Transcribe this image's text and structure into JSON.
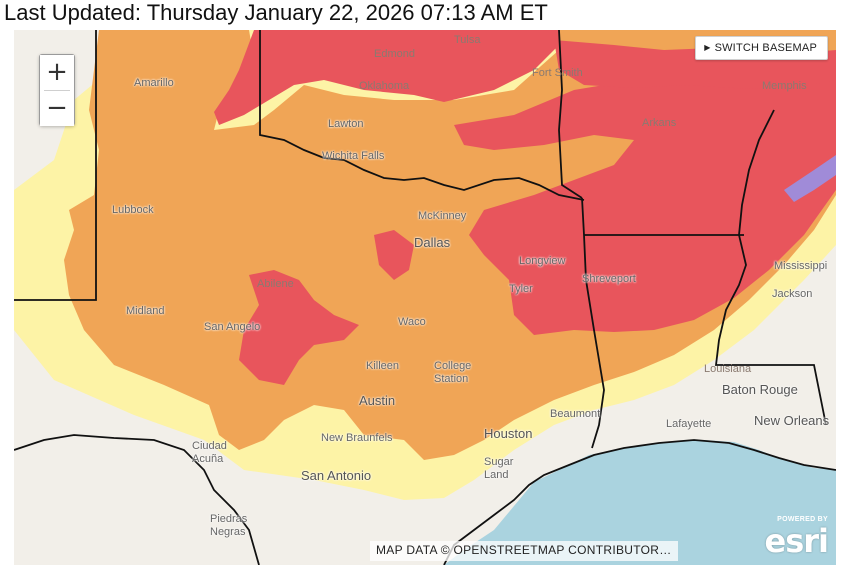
{
  "header": {
    "last_updated": "Last Updated: Thursday January 22, 2026 07:13 AM ET"
  },
  "controls": {
    "zoom_in": "+",
    "zoom_out": "−",
    "switch_basemap_arrow": "▶",
    "switch_basemap": "SWITCH BASEMAP"
  },
  "attribution": "MAP DATA © OPENSTREETMAP CONTRIBUTOR…",
  "esri": {
    "powered_by": "POWERED BY",
    "logo": "esri"
  },
  "cities": {
    "tulsa": "Tulsa",
    "edmond": "Edmond",
    "oklahoma": "Oklahoma",
    "fort_smith": "Fort Smith",
    "memphis": "Memphis",
    "amarillo": "Amarillo",
    "lawton": "Lawton",
    "arkansas": "Arkans",
    "wichita_falls": "Wichita Falls",
    "lubbock": "Lubbock",
    "mckinney": "McKinney",
    "dallas": "Dallas",
    "longview": "Longview",
    "tyler": "Tyler",
    "shreveport": "Shreveport",
    "mississippi": "Mississippi",
    "jackson": "Jackson",
    "abilene": "Abilene",
    "midland": "Midland",
    "san_angelo": "San Angelo",
    "waco": "Waco",
    "killeen": "Killeen",
    "college_station": "College Station",
    "louisiana": "Louisiana",
    "baton_rouge": "Baton Rouge",
    "austin": "Austin",
    "beaumont": "Beaumont",
    "lafayette": "Lafayette",
    "new_orleans": "New Orleans",
    "ciudad_acuna": "Ciudad Acuña",
    "new_braunfels": "New Braunfels",
    "houston": "Houston",
    "sugar_land": "Sugar Land",
    "san_antonio": "San Antonio",
    "piedras_negras": "Piedras Negras"
  },
  "colors": {
    "land": "#f2efe9",
    "water": "#aad3df",
    "yellow": "#fdf3a6",
    "orange": "#f0a556",
    "red": "#e8555c",
    "purple": "#a08bd8",
    "border": "#111111"
  }
}
